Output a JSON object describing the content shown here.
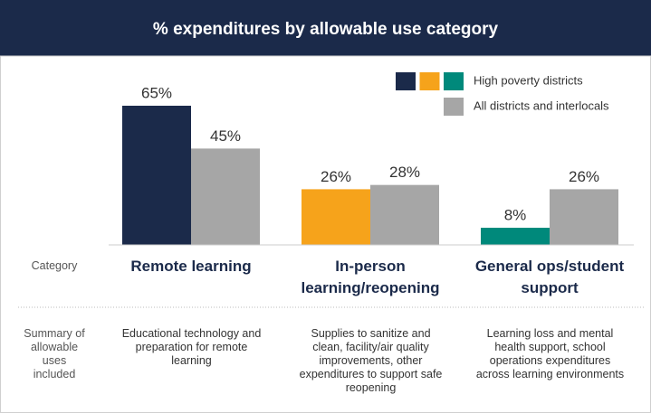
{
  "chart_data": {
    "type": "bar",
    "title": "% expenditures by allowable use category",
    "categories": [
      "Remote learning",
      "In-person learning/reopening",
      "General ops/student support"
    ],
    "series": [
      {
        "name": "High poverty districts",
        "colors": [
          "#1b2a4a",
          "#f6a31b",
          "#00897b"
        ],
        "values": [
          65,
          26,
          8
        ],
        "value_labels": [
          "65%",
          "26%",
          "8%"
        ]
      },
      {
        "name": "All districts and interlocals",
        "color": "#a6a6a6",
        "values": [
          45,
          28,
          26
        ],
        "value_labels": [
          "45%",
          "28%",
          "26%"
        ]
      }
    ],
    "row_labels": [
      "Category",
      "Summary of allowable uses included"
    ],
    "summaries": [
      "Educational technology and preparation for remote learning",
      "Supplies to sanitize and clean, facility/air quality improvements, other expenditures to support safe reopening",
      "Learning loss and mental health support, school operations expenditures across learning environments"
    ]
  }
}
